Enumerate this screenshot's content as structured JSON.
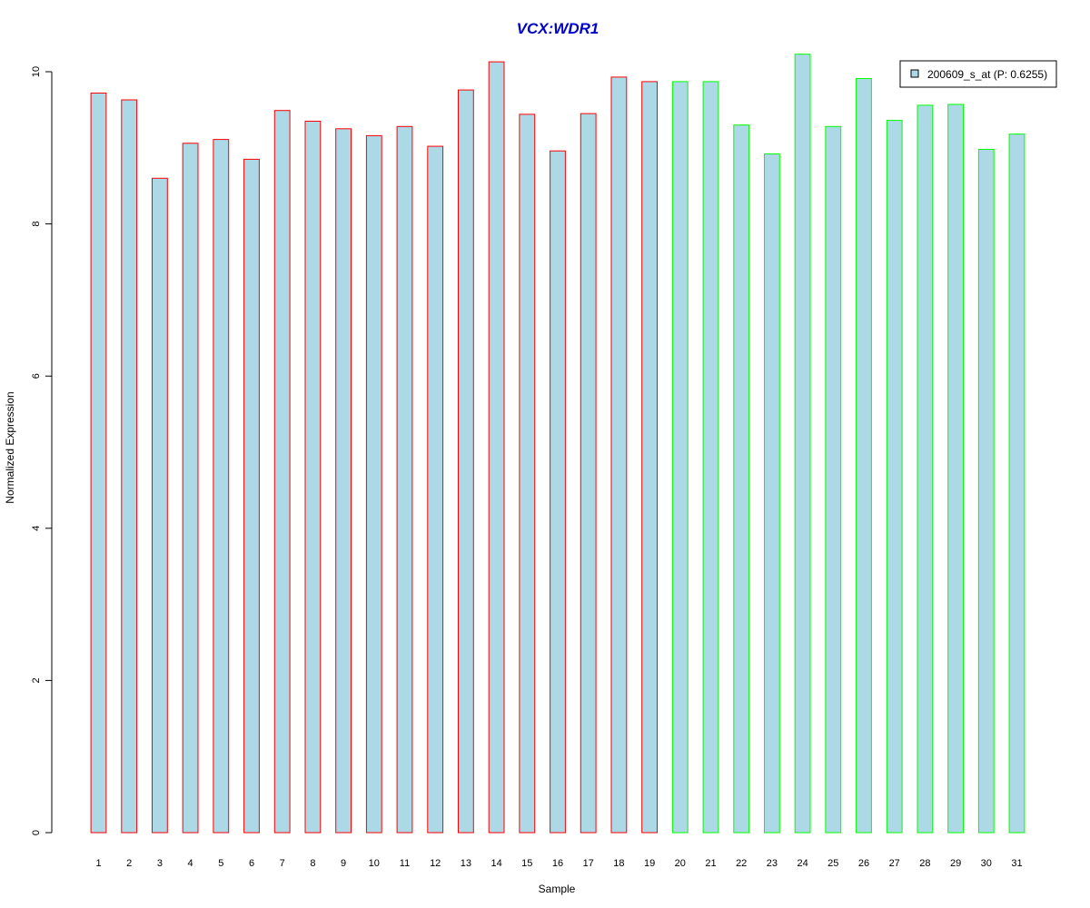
{
  "chart_data": {
    "type": "bar",
    "title": "VCX:WDR1",
    "xlabel": "Sample",
    "ylabel": "Normalized Expression",
    "ylim": [
      0,
      10
    ],
    "yticks": [
      0,
      2,
      4,
      6,
      8,
      10
    ],
    "categories": [
      "1",
      "2",
      "3",
      "4",
      "5",
      "6",
      "7",
      "8",
      "9",
      "10",
      "11",
      "12",
      "13",
      "14",
      "15",
      "16",
      "17",
      "18",
      "19",
      "20",
      "21",
      "22",
      "23",
      "24",
      "25",
      "26",
      "27",
      "28",
      "29",
      "30",
      "31"
    ],
    "series": [
      {
        "name": "200609_s_at (P: 0.6255)",
        "values": [
          9.72,
          9.63,
          8.6,
          9.06,
          9.11,
          8.85,
          9.49,
          9.35,
          9.25,
          9.16,
          9.28,
          9.02,
          9.76,
          10.13,
          9.44,
          8.96,
          9.45,
          9.93,
          9.87,
          9.87,
          9.87,
          9.3,
          8.92,
          10.23,
          9.28,
          9.91,
          9.36,
          9.56,
          9.57,
          8.98,
          9.18
        ]
      }
    ],
    "group_count_red": 19,
    "legend_position": "top-right",
    "grid": false,
    "colors": {
      "fill": "#add8e6",
      "border_group1": "#ff0000",
      "border_group2": "#00ff00",
      "title": "#0000cc"
    }
  }
}
